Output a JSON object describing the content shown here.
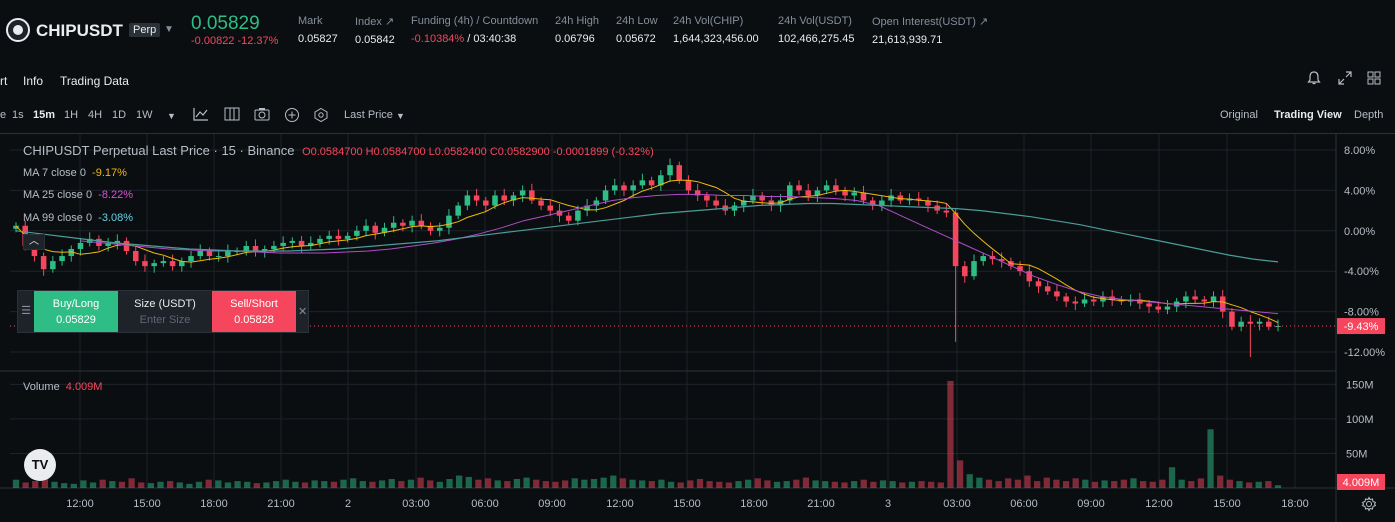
{
  "header": {
    "symbol": "CHIPUSDT",
    "badge": "Perp",
    "last_price": "0.05829",
    "change": "-0.00822 -12.37%",
    "stats": [
      {
        "label": "Mark",
        "value": "0.05827",
        "x": 298
      },
      {
        "label": "Index ↗",
        "value": "0.05842",
        "x": 355
      },
      {
        "label": "Funding (4h) / Countdown",
        "value_red": "-0.10384%",
        "value": " / 03:40:38",
        "x": 411
      },
      {
        "label": "24h High",
        "value": "0.06796",
        "x": 555
      },
      {
        "label": "24h Low",
        "value": "0.05672",
        "x": 616
      },
      {
        "label": "24h Vol(CHIP)",
        "value": "1,644,323,456.00",
        "x": 673
      },
      {
        "label": "24h Vol(USDT)",
        "value": "102,466,275.45",
        "x": 778
      },
      {
        "label": "Open Interest(USDT) ↗",
        "value": "21,613,939.71",
        "x": 872
      }
    ]
  },
  "tabs": {
    "chart": "rt",
    "info": "Info",
    "trading_data": "Trading Data"
  },
  "toolbar": {
    "time_e": "e",
    "t1s": "1s",
    "t15m": "15m",
    "t1h": "1H",
    "t4h": "4H",
    "t1d": "1D",
    "t1w": "1W",
    "price_type": "Last Price",
    "original": "Original",
    "trading_view": "Trading View",
    "depth": "Depth"
  },
  "legend": {
    "title": "CHIPUSDT Perpetual Last Price · 15 · Binance",
    "ohlc": "O0.0584700 H0.0584700 L0.0582400 C0.0582900 -0.0001899 (-0.32%)",
    "ma7_label": "MA 7 close 0",
    "ma7_value": "-9.17%",
    "ma25_label": "MA 25 close 0",
    "ma25_value": "-8.22%",
    "ma99_label": "MA 99 close 0",
    "ma99_value": "-3.08%",
    "volume_label": "Volume",
    "volume_value": "4.009M"
  },
  "order_panel": {
    "buy_label": "Buy/Long",
    "buy_price": "0.05829",
    "size_label": "Size (USDT)",
    "size_placeholder": "Enter Size",
    "sell_label": "Sell/Short",
    "sell_price": "0.05828"
  },
  "chart_data": {
    "type": "candlestick",
    "y_axis_ticks": [
      "8.00%",
      "4.00%",
      "0.00%",
      "-4.00%",
      "-8.00%",
      "-12.00%"
    ],
    "y_axis_values": [
      8,
      4,
      0,
      -4,
      -8,
      -12
    ],
    "current_tag": "-9.43%",
    "current_value": -9.43,
    "volume_ticks": [
      "150M",
      "100M",
      "50M"
    ],
    "volume_tick_values": [
      150,
      100,
      50
    ],
    "volume_current_tag": "4.009M",
    "x_axis_ticks": [
      "12:00",
      "15:00",
      "18:00",
      "21:00",
      "2",
      "03:00",
      "06:00",
      "09:00",
      "12:00",
      "15:00",
      "18:00",
      "21:00",
      "3",
      "03:00",
      "06:00",
      "09:00",
      "12:00",
      "15:00",
      "18:00"
    ],
    "close_pct": [
      0.5,
      -1.5,
      -2.5,
      -3.8,
      -3.0,
      -2.5,
      -1.8,
      -1.2,
      -0.8,
      -1.5,
      -1.2,
      -1.0,
      -2.0,
      -3.0,
      -3.5,
      -3.2,
      -3.0,
      -3.5,
      -3.0,
      -2.5,
      -2.0,
      -2.5,
      -2.5,
      -2.0,
      -2.0,
      -1.5,
      -2.0,
      -1.8,
      -1.5,
      -1.2,
      -1.0,
      -1.5,
      -1.2,
      -0.8,
      -0.5,
      -0.8,
      -0.5,
      0.0,
      0.5,
      -0.2,
      0.3,
      0.8,
      0.5,
      1.0,
      0.5,
      0.0,
      0.3,
      1.5,
      2.5,
      3.5,
      3.0,
      2.5,
      3.5,
      3.0,
      3.5,
      4.0,
      3.0,
      2.5,
      2.0,
      1.5,
      1.0,
      2.0,
      2.5,
      3.0,
      4.0,
      4.5,
      4.0,
      4.5,
      5.0,
      4.5,
      5.5,
      6.5,
      5.0,
      4.0,
      3.5,
      3.0,
      2.5,
      2.0,
      2.5,
      3.0,
      3.5,
      3.0,
      2.5,
      3.0,
      4.5,
      4.0,
      3.5,
      4.0,
      4.5,
      4.0,
      3.5,
      3.8,
      3.0,
      2.5,
      3.0,
      3.5,
      3.0,
      3.2,
      3.0,
      2.5,
      2.0,
      1.8,
      -3.5,
      -4.5,
      -3.0,
      -2.5,
      -2.8,
      -3.0,
      -3.5,
      -4.0,
      -5.0,
      -5.5,
      -6.0,
      -6.5,
      -7.0,
      -7.2,
      -6.8,
      -7.0,
      -6.5,
      -6.8,
      -7.0,
      -6.8,
      -7.2,
      -7.5,
      -7.8,
      -7.5,
      -7.0,
      -6.5,
      -6.8,
      -7.0,
      -6.5,
      -8.0,
      -9.5,
      -9.0,
      -9.2,
      -9.0,
      -9.5,
      -9.43
    ],
    "ma25_pct": [
      -1.0,
      -1.2,
      -1.4,
      -1.6,
      -1.8,
      -1.9,
      -2.0,
      -2.0,
      -2.1,
      -2.2,
      -2.2,
      -2.2,
      -2.1,
      -2.0,
      -1.8,
      -1.5,
      -1.2,
      -0.8,
      -0.3,
      0.3,
      1.0,
      1.5,
      2.0,
      2.5,
      3.0,
      3.3,
      3.5,
      3.6,
      3.6,
      3.5,
      3.5,
      3.4,
      3.4,
      3.3,
      3.2,
      3.0,
      2.5,
      1.5,
      0.5,
      -0.5,
      -1.5,
      -2.5,
      -3.5,
      -4.5,
      -5.3,
      -6.0,
      -6.5,
      -6.8,
      -7.0,
      -7.2,
      -7.4,
      -7.6,
      -7.8,
      -8.0,
      -8.2
    ],
    "ma99_pct": [
      0.0,
      -0.3,
      -0.6,
      -0.9,
      -1.2,
      -1.4,
      -1.6,
      -1.8,
      -1.9,
      -2.0,
      -2.0,
      -2.0,
      -1.9,
      -1.8,
      -1.6,
      -1.4,
      -1.2,
      -1.0,
      -0.7,
      -0.4,
      -0.1,
      0.2,
      0.5,
      0.8,
      1.1,
      1.4,
      1.7,
      1.9,
      2.1,
      2.3,
      2.5,
      2.6,
      2.7,
      2.7,
      2.6,
      2.5,
      2.4,
      2.3,
      2.2,
      2.0,
      1.7,
      1.4,
      1.0,
      0.6,
      0.1,
      -0.4,
      -0.9,
      -1.4,
      -1.9,
      -2.4,
      -2.8,
      -3.08
    ],
    "volumes": [
      12,
      8,
      10,
      15,
      9,
      7,
      6,
      11,
      8,
      12,
      10,
      9,
      14,
      8,
      7,
      9,
      10,
      8,
      6,
      9,
      12,
      11,
      8,
      10,
      9,
      7,
      8,
      10,
      12,
      9,
      8,
      11,
      10,
      9,
      12,
      14,
      10,
      9,
      11,
      13,
      10,
      12,
      15,
      11,
      9,
      13,
      18,
      16,
      12,
      14,
      11,
      10,
      13,
      15,
      12,
      10,
      9,
      11,
      14,
      12,
      13,
      15,
      18,
      14,
      12,
      11,
      10,
      12,
      9,
      8,
      11,
      13,
      10,
      9,
      8,
      10,
      12,
      14,
      11,
      9,
      10,
      12,
      15,
      11,
      10,
      9,
      8,
      10,
      12,
      9,
      11,
      10,
      8,
      9,
      10,
      9,
      8,
      155,
      40,
      20,
      15,
      12,
      10,
      14,
      12,
      18,
      10,
      15,
      12,
      10,
      14,
      12,
      9,
      11,
      10,
      12,
      14,
      10,
      9,
      12,
      30,
      12,
      10,
      14,
      85,
      18,
      12,
      10,
      8,
      9,
      10,
      4
    ]
  }
}
